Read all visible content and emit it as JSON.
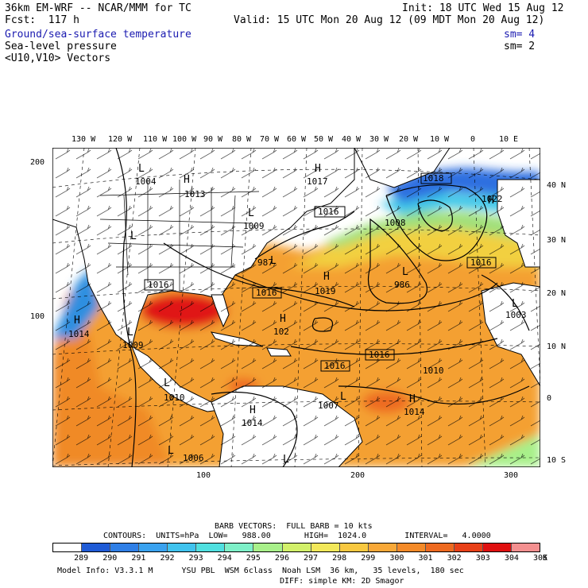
{
  "header": {
    "title": "36km EM-WRF -- NCAR/MMM for TC",
    "init": "Init: 18 UTC Wed 15 Aug 12",
    "fcst": "Fcst:  117 h",
    "valid": "Valid: 15 UTC Mon 20 Aug 12 (09 MDT Mon 20 Aug 12)",
    "fields": [
      {
        "label": "Ground/sea-surface temperature",
        "sm": "sm= 4"
      },
      {
        "label": "Sea-level pressure",
        "sm": "sm= 2"
      },
      {
        "label": "<U10,V10> Vectors",
        "sm": ""
      }
    ]
  },
  "map": {
    "longitude_labels": [
      "130 W",
      "120 W",
      "110 W",
      "100 W",
      "90 W",
      "80 W",
      "70 W",
      "60 W",
      "50 W",
      "40 W",
      "30 W",
      "20 W",
      "10 W",
      "0",
      "10 E"
    ],
    "latitude_labels": [
      "40 N",
      "30 N",
      "20 N",
      "10 N",
      "0",
      "10 S"
    ],
    "grid_left": [
      "200",
      "100"
    ],
    "grid_bottom": [
      "100",
      "200",
      "300"
    ],
    "pressure_labels": [
      "1004",
      "1013",
      "1017",
      "1016",
      "1008",
      "1022",
      "1018",
      "1016",
      "1016",
      "1009",
      "987",
      "1019",
      "986",
      "1016",
      "1003",
      "1014",
      "1009",
      "102",
      "1016",
      "1016",
      "1010",
      "1007",
      "1014",
      "1014",
      "1006",
      "1010"
    ],
    "centers": [
      "L",
      "L",
      "H",
      "H",
      "L",
      "L",
      "H",
      "H",
      "L",
      "H",
      "L",
      "H",
      "L",
      "H",
      "L",
      "H",
      "L",
      "L",
      "L"
    ]
  },
  "footer": {
    "barb_line": "BARB VECTORS:  FULL BARB = 10 kts",
    "contours_line": "CONTOURS:  UNITS=hPa  LOW=   988.00       HIGH=  1024.0        INTERVAL=   4.0000",
    "colorbar_values": [
      "289",
      "290",
      "291",
      "292",
      "293",
      "294",
      "295",
      "296",
      "297",
      "298",
      "299",
      "300",
      "301",
      "302",
      "303",
      "304",
      "305",
      "K"
    ],
    "colorbar_colors": [
      "#ffffff",
      "#1f5bd6",
      "#2f7fe6",
      "#3aa2ef",
      "#40c3ee",
      "#50e0e0",
      "#7ef0c8",
      "#a8f08a",
      "#d2f06a",
      "#f2e85a",
      "#f8c840",
      "#f8a838",
      "#f48a28",
      "#ee6a20",
      "#e84018",
      "#e01010",
      "#f49090"
    ],
    "model_info": "Model Info: V3.3.1 M      YSU PBL  WSM 6class  Noah LSM  36 km,   35 levels,  180 sec",
    "model_info2": "DIFF: simple KM: 2D Smagor"
  }
}
